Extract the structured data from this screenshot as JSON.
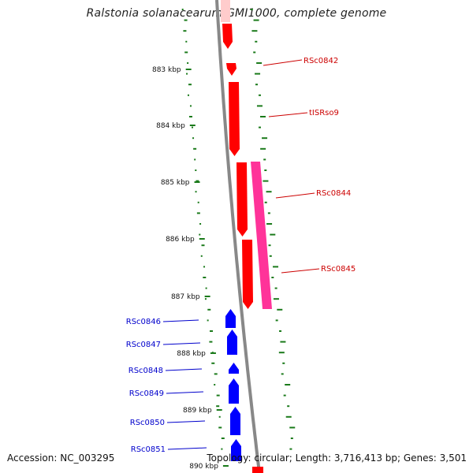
{
  "header": {
    "title": "Ralstonia solanacearum GMI1000, complete genome"
  },
  "footer": {
    "accession": "Accession: NC_003295",
    "summary": "Topology: circular; Length: 3,716,413 bp; Genes: 3,501"
  },
  "scale": {
    "ticks": [
      "883 kbp",
      "884 kbp",
      "885 kbp",
      "886 kbp",
      "887 kbp",
      "888 kbp",
      "889 kbp",
      "890 kbp"
    ]
  },
  "colors": {
    "forward": "#ff0000",
    "reverse": "#0000ff",
    "rna": "#ff3399",
    "backbone": "#888888",
    "gc_ticks": "#1a7a1a",
    "label_forward": "#cc0000",
    "label_reverse": "#0000cc"
  },
  "features": [
    {
      "label": "",
      "strand": "forward",
      "kind": "gene"
    },
    {
      "label": "RSc0842",
      "strand": "forward",
      "kind": "gene"
    },
    {
      "label": "tISRso9",
      "strand": "forward",
      "kind": "gene"
    },
    {
      "label": "RSc0844",
      "strand": "forward",
      "kind": "gene"
    },
    {
      "label": "RSc0844",
      "strand": "forward",
      "kind": "rna"
    },
    {
      "label": "RSc0845",
      "strand": "forward",
      "kind": "gene"
    },
    {
      "label": "RSc0846",
      "strand": "reverse",
      "kind": "gene"
    },
    {
      "label": "RSc0847",
      "strand": "reverse",
      "kind": "gene"
    },
    {
      "label": "RSc0848",
      "strand": "reverse",
      "kind": "gene"
    },
    {
      "label": "RSc0849",
      "strand": "reverse",
      "kind": "gene"
    },
    {
      "label": "RSc0850",
      "strand": "reverse",
      "kind": "gene"
    },
    {
      "label": "RSc0851",
      "strand": "reverse",
      "kind": "gene"
    }
  ]
}
